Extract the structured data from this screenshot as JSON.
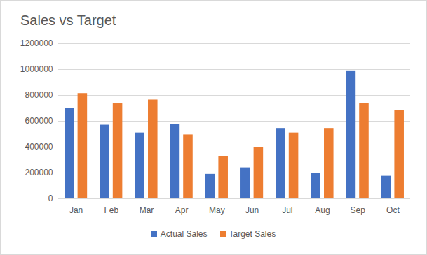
{
  "chart_data": {
    "type": "bar",
    "title": "Sales vs Target",
    "categories": [
      "Jan",
      "Feb",
      "Mar",
      "Apr",
      "May",
      "Jun",
      "Jul",
      "Aug",
      "Sep",
      "Oct"
    ],
    "series": [
      {
        "name": "Actual Sales",
        "color": "#4472c4",
        "values": [
          700000,
          570000,
          510000,
          575000,
          190000,
          240000,
          545000,
          195000,
          990000,
          175000
        ]
      },
      {
        "name": "Target Sales",
        "color": "#ed7d31",
        "values": [
          815000,
          735000,
          765000,
          495000,
          325000,
          400000,
          510000,
          545000,
          740000,
          685000
        ]
      }
    ],
    "ylim": [
      0,
      1200000
    ],
    "yticks": [
      0,
      200000,
      400000,
      600000,
      800000,
      1000000,
      1200000
    ],
    "grid": true,
    "legend": "bottom"
  }
}
